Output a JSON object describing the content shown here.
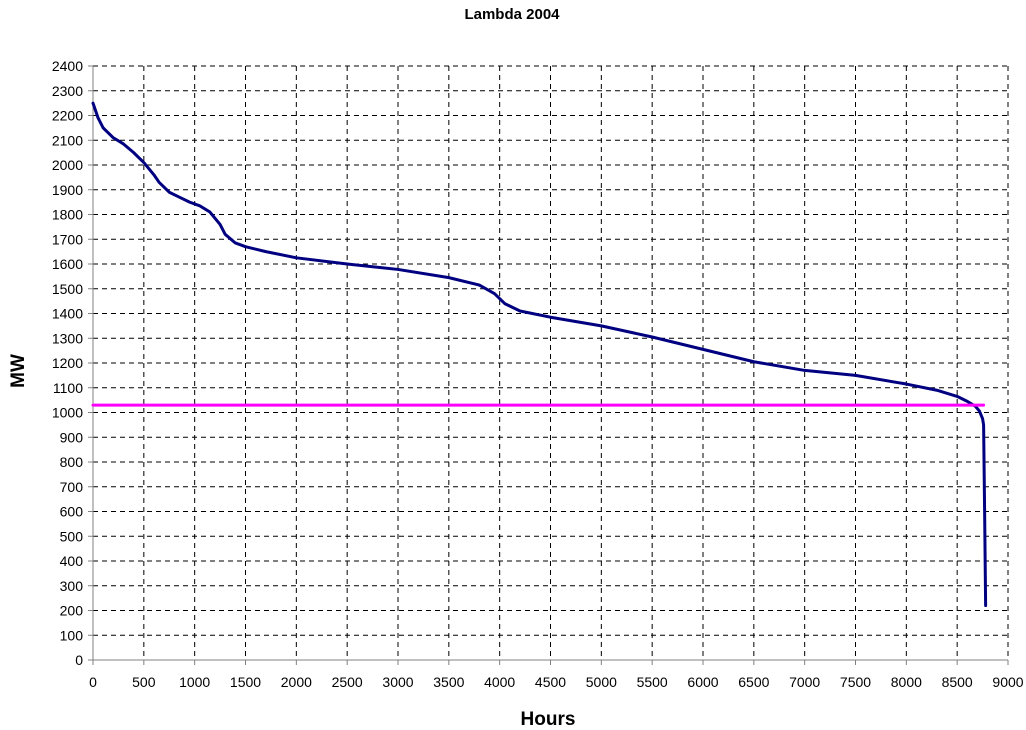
{
  "chart_data": {
    "type": "line",
    "title": "Lambda 2004",
    "xlabel": "Hours",
    "ylabel": "MW",
    "xlim": [
      0,
      9000
    ],
    "ylim": [
      0,
      2400
    ],
    "x_ticks": [
      "0",
      "500",
      "1000",
      "1500",
      "2000",
      "2500",
      "3000",
      "3500",
      "4000",
      "4500",
      "5000",
      "5500",
      "6000",
      "6500",
      "7000",
      "7500",
      "8000",
      "8500",
      "9000"
    ],
    "y_ticks": [
      "0",
      "100",
      "200",
      "300",
      "400",
      "500",
      "600",
      "700",
      "800",
      "900",
      "1000",
      "1100",
      "1200",
      "1300",
      "1400",
      "1500",
      "1600",
      "1700",
      "1800",
      "1900",
      "2000",
      "2100",
      "2200",
      "2300",
      "2400"
    ],
    "grid": true,
    "legend": "none",
    "series": [
      {
        "color": "#000080",
        "points": [
          [
            0,
            2250
          ],
          [
            50,
            2190
          ],
          [
            100,
            2150
          ],
          [
            200,
            2110
          ],
          [
            300,
            2085
          ],
          [
            400,
            2050
          ],
          [
            500,
            2010
          ],
          [
            600,
            1960
          ],
          [
            650,
            1930
          ],
          [
            750,
            1890
          ],
          [
            850,
            1870
          ],
          [
            950,
            1850
          ],
          [
            1050,
            1835
          ],
          [
            1150,
            1810
          ],
          [
            1250,
            1760
          ],
          [
            1300,
            1720
          ],
          [
            1400,
            1685
          ],
          [
            1500,
            1670
          ],
          [
            1700,
            1650
          ],
          [
            2000,
            1625
          ],
          [
            2500,
            1600
          ],
          [
            3000,
            1578
          ],
          [
            3500,
            1545
          ],
          [
            3800,
            1515
          ],
          [
            3950,
            1480
          ],
          [
            4050,
            1440
          ],
          [
            4200,
            1410
          ],
          [
            4500,
            1385
          ],
          [
            5000,
            1350
          ],
          [
            5500,
            1305
          ],
          [
            6000,
            1255
          ],
          [
            6500,
            1205
          ],
          [
            7000,
            1170
          ],
          [
            7500,
            1150
          ],
          [
            8000,
            1115
          ],
          [
            8300,
            1090
          ],
          [
            8500,
            1065
          ],
          [
            8600,
            1045
          ],
          [
            8680,
            1025
          ],
          [
            8720,
            1005
          ],
          [
            8750,
            975
          ],
          [
            8760,
            950
          ],
          [
            8770,
            600
          ],
          [
            8780,
            220
          ]
        ]
      },
      {
        "color": "#ff00ff",
        "points": [
          [
            0,
            1030
          ],
          [
            8760,
            1030
          ]
        ]
      }
    ]
  }
}
